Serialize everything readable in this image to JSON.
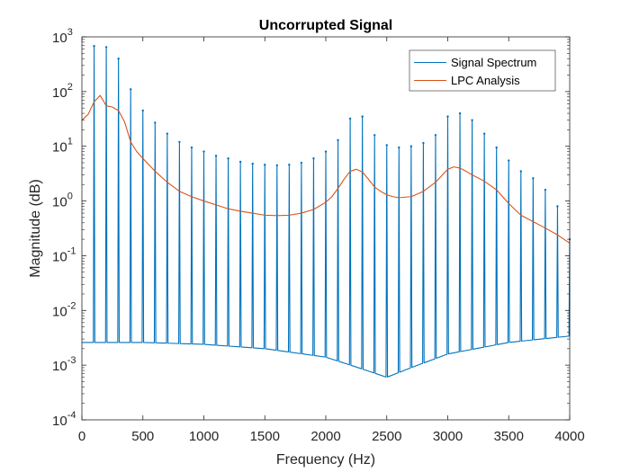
{
  "chart_data": {
    "type": "line",
    "title": "Uncorrupted Signal",
    "xlabel": "Frequency (Hz)",
    "ylabel": "Magnitude (dB)",
    "xlim": [
      0,
      4000
    ],
    "ylim": [
      0.0001,
      1000
    ],
    "y_scale": "log",
    "grid": false,
    "legend_position": "top-right",
    "x_ticks": [
      "0",
      "500",
      "1000",
      "1500",
      "2000",
      "2500",
      "3000",
      "3500",
      "4000"
    ],
    "y_ticks": [
      {
        "base": "10",
        "exp": "-4"
      },
      {
        "base": "10",
        "exp": "-3"
      },
      {
        "base": "10",
        "exp": "-2"
      },
      {
        "base": "10",
        "exp": "-1"
      },
      {
        "base": "10",
        "exp": "0"
      },
      {
        "base": "10",
        "exp": "1"
      },
      {
        "base": "10",
        "exp": "2"
      },
      {
        "base": "10",
        "exp": "3"
      }
    ],
    "series": [
      {
        "name": "Signal Spectrum",
        "color": "#0072BD",
        "harmonic_spacing_hz": 100,
        "peaks": [
          {
            "x": 100,
            "y": 680
          },
          {
            "x": 200,
            "y": 650
          },
          {
            "x": 300,
            "y": 400
          },
          {
            "x": 400,
            "y": 110
          },
          {
            "x": 500,
            "y": 45
          },
          {
            "x": 600,
            "y": 27
          },
          {
            "x": 700,
            "y": 17
          },
          {
            "x": 800,
            "y": 12
          },
          {
            "x": 900,
            "y": 9.5
          },
          {
            "x": 1000,
            "y": 8
          },
          {
            "x": 1100,
            "y": 6.7
          },
          {
            "x": 1200,
            "y": 6
          },
          {
            "x": 1300,
            "y": 5.2
          },
          {
            "x": 1400,
            "y": 4.8
          },
          {
            "x": 1500,
            "y": 4.6
          },
          {
            "x": 1600,
            "y": 4.5
          },
          {
            "x": 1700,
            "y": 4.6
          },
          {
            "x": 1800,
            "y": 5
          },
          {
            "x": 1900,
            "y": 6
          },
          {
            "x": 2000,
            "y": 8
          },
          {
            "x": 2100,
            "y": 13
          },
          {
            "x": 2200,
            "y": 32
          },
          {
            "x": 2300,
            "y": 35
          },
          {
            "x": 2400,
            "y": 16
          },
          {
            "x": 2500,
            "y": 10.5
          },
          {
            "x": 2600,
            "y": 9.5
          },
          {
            "x": 2700,
            "y": 10
          },
          {
            "x": 2800,
            "y": 11.5
          },
          {
            "x": 2900,
            "y": 16
          },
          {
            "x": 3000,
            "y": 35
          },
          {
            "x": 3100,
            "y": 40
          },
          {
            "x": 3200,
            "y": 30
          },
          {
            "x": 3300,
            "y": 17
          },
          {
            "x": 3400,
            "y": 9.5
          },
          {
            "x": 3500,
            "y": 5.5
          },
          {
            "x": 3600,
            "y": 3.5
          },
          {
            "x": 3700,
            "y": 2.6
          },
          {
            "x": 3800,
            "y": 1.6
          },
          {
            "x": 3900,
            "y": 0.8
          },
          {
            "x": 4000,
            "y": 0.2
          }
        ],
        "floor": [
          {
            "x": 0,
            "y": 0.0026
          },
          {
            "x": 500,
            "y": 0.0026
          },
          {
            "x": 1000,
            "y": 0.0024
          },
          {
            "x": 1500,
            "y": 0.002
          },
          {
            "x": 2000,
            "y": 0.0014
          },
          {
            "x": 2300,
            "y": 0.00085
          },
          {
            "x": 2500,
            "y": 0.0006
          },
          {
            "x": 2700,
            "y": 0.0009
          },
          {
            "x": 3000,
            "y": 0.0016
          },
          {
            "x": 3500,
            "y": 0.0026
          },
          {
            "x": 4000,
            "y": 0.0034
          }
        ]
      },
      {
        "name": "LPC Analysis",
        "color": "#D95319",
        "x": [
          0,
          50,
          100,
          150,
          200,
          250,
          300,
          350,
          400,
          450,
          500,
          600,
          700,
          800,
          900,
          1000,
          1100,
          1200,
          1300,
          1400,
          1500,
          1600,
          1700,
          1800,
          1900,
          2000,
          2050,
          2100,
          2150,
          2200,
          2250,
          2300,
          2350,
          2400,
          2450,
          2500,
          2550,
          2600,
          2700,
          2800,
          2900,
          3000,
          3050,
          3100,
          3150,
          3200,
          3300,
          3400,
          3500,
          3600,
          3700,
          3800,
          3900,
          4000
        ],
        "y": [
          30,
          38,
          65,
          85,
          55,
          52,
          45,
          28,
          12,
          8,
          6,
          3.5,
          2.2,
          1.5,
          1.2,
          1.0,
          0.85,
          0.72,
          0.65,
          0.6,
          0.55,
          0.54,
          0.55,
          0.6,
          0.7,
          0.95,
          1.2,
          1.7,
          2.5,
          3.5,
          3.8,
          3.4,
          2.5,
          1.8,
          1.5,
          1.3,
          1.2,
          1.15,
          1.2,
          1.5,
          2.2,
          3.8,
          4.2,
          4.0,
          3.5,
          3.0,
          2.3,
          1.6,
          0.9,
          0.55,
          0.42,
          0.32,
          0.24,
          0.17
        ]
      }
    ]
  }
}
